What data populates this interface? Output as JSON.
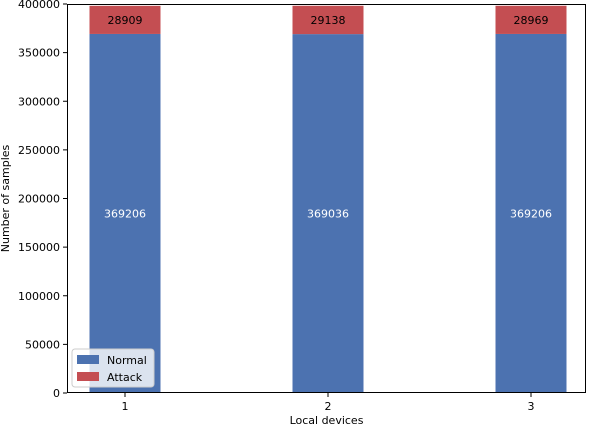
{
  "chart_data": {
    "type": "bar",
    "stacked": true,
    "categories": [
      "1",
      "2",
      "3"
    ],
    "series": [
      {
        "name": "Normal",
        "values": [
          369206,
          369036,
          369206
        ],
        "color": "#4c72b0",
        "label_color": "#ffffff"
      },
      {
        "name": "Attack",
        "values": [
          28909,
          29138,
          28969
        ],
        "color": "#c44e52",
        "label_color": "#000000"
      }
    ],
    "xlabel": "Local devices",
    "ylabel": "Number of samples",
    "ylim": [
      0,
      400000
    ],
    "yticks": [
      0,
      50000,
      100000,
      150000,
      200000,
      250000,
      300000,
      350000,
      400000
    ],
    "grid": false,
    "legend": "lower-left"
  }
}
